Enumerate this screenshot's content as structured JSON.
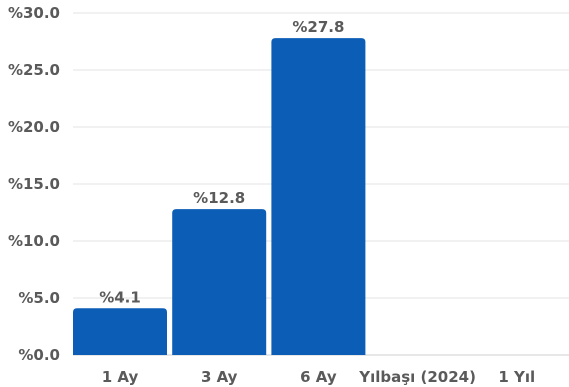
{
  "chart_data": {
    "type": "bar",
    "categories": [
      "1 Ay",
      "3 Ay",
      "6 Ay",
      "Yılbaşı (2024)",
      "1 Yıl"
    ],
    "values": [
      4.1,
      12.8,
      27.8,
      null,
      null
    ],
    "data_labels": [
      "%4.1",
      "%12.8",
      "%27.8",
      "",
      ""
    ],
    "y_ticks": [
      "%0.0",
      "%5.0",
      "%10.0",
      "%15.0",
      "%20.0",
      "%25.0",
      "%30.0"
    ],
    "ylim": [
      0,
      30
    ],
    "grid": true,
    "bar_color": "#0b5db5",
    "title": "",
    "xlabel": "",
    "ylabel": ""
  }
}
